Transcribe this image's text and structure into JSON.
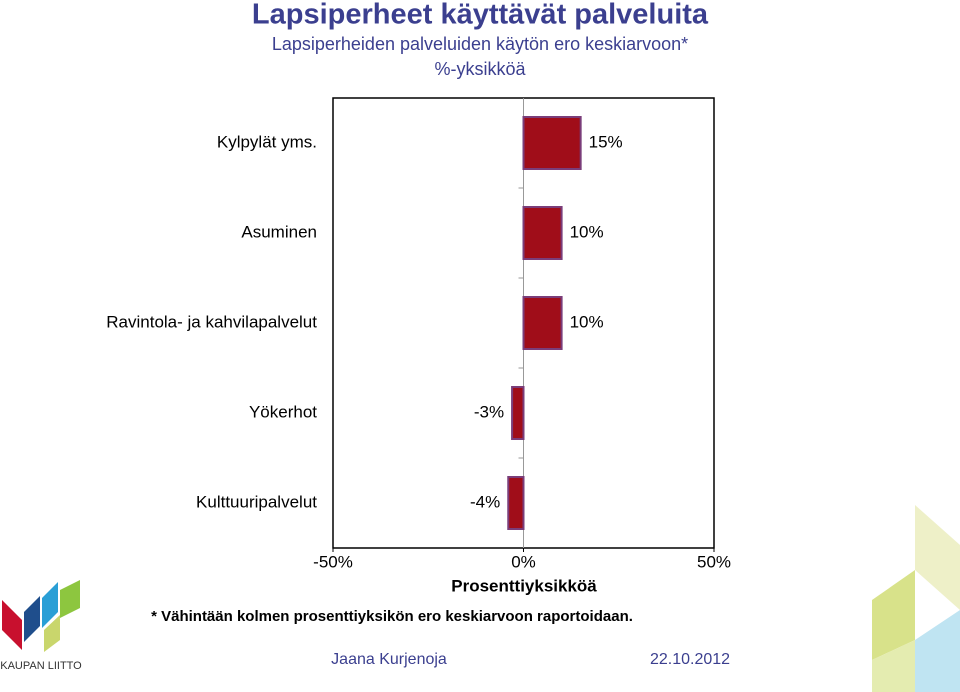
{
  "chart_data": {
    "type": "barh",
    "title": "Lapsiperheet käyttävät palveluita",
    "subtitle": "Lapsiperheiden palveluiden käytön ero keskiarvoon*",
    "unit_note": "%-yksikköä",
    "categories": [
      "Kylpylät yms.",
      "Asuminen",
      "Ravintola- ja kahvilapalvelut",
      "Yökerhot",
      "Kulttuuripalvelut"
    ],
    "values": [
      15,
      10,
      10,
      -3,
      -4
    ],
    "value_labels": [
      "15%",
      "10%",
      "10%",
      "-3%",
      "-4%"
    ],
    "color": "#a00d19",
    "xlim": [
      -50,
      50
    ],
    "xticks": [
      {
        "value": -50,
        "label": "-50%"
      },
      {
        "value": 0,
        "label": "0%"
      },
      {
        "value": 50,
        "label": "50%"
      }
    ],
    "xlabel": "Prosenttiyksikköä",
    "footnote": "* Vähintään kolmen prosenttiyksikön ero keskiarvoon raportoidaan."
  },
  "footer": {
    "author": "Jaana Kurjenoja",
    "date": "22.10.2012",
    "logo": "KAUPAN LIITTO"
  }
}
